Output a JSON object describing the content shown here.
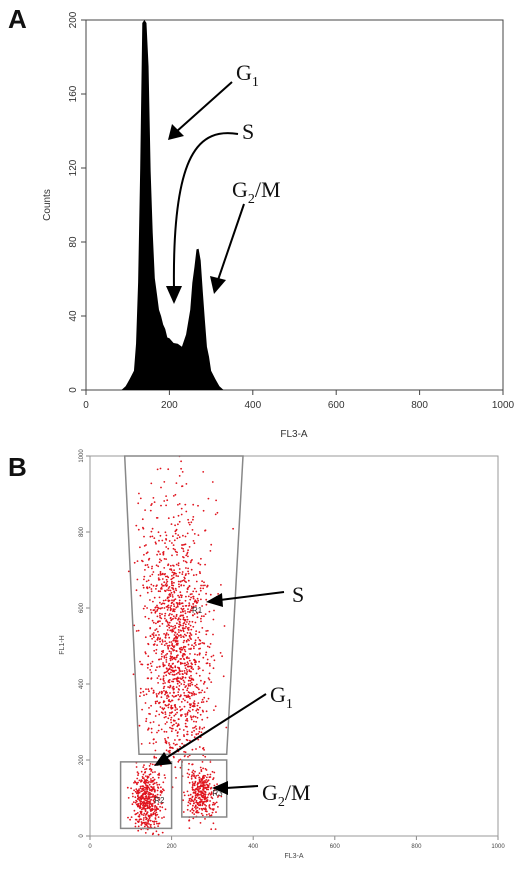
{
  "panels": {
    "a_letter": "A",
    "b_letter": "B"
  },
  "chart_data": [
    {
      "type": "area",
      "panel": "A",
      "xlabel": "FL3-A",
      "ylabel": "Counts",
      "xlim": [
        0,
        1000
      ],
      "ylim": [
        0,
        200
      ],
      "x_ticks": [
        0,
        200,
        400,
        600,
        800,
        1000
      ],
      "y_ticks": [
        0,
        40,
        80,
        120,
        160,
        200
      ],
      "fill_color": "#000000",
      "x": [
        85,
        95,
        105,
        115,
        120,
        125,
        130,
        135,
        140,
        145,
        150,
        155,
        160,
        165,
        170,
        175,
        180,
        185,
        190,
        195,
        200,
        210,
        220,
        230,
        240,
        250,
        255,
        260,
        265,
        270,
        275,
        280,
        285,
        290,
        295,
        300,
        310,
        320,
        330
      ],
      "values": [
        0,
        2,
        6,
        12,
        25,
        60,
        120,
        200,
        200,
        200,
        175,
        120,
        85,
        62,
        52,
        45,
        40,
        37,
        33,
        30,
        28,
        27,
        25,
        25,
        30,
        45,
        58,
        68,
        76,
        78,
        70,
        55,
        38,
        25,
        18,
        12,
        6,
        2,
        0
      ],
      "annotations": [
        {
          "id": "g1",
          "main": "G",
          "sub": "1"
        },
        {
          "id": "s",
          "main": "S",
          "sub": ""
        },
        {
          "id": "g2m",
          "main": "G",
          "sub": "2",
          "tail": "/M"
        }
      ]
    },
    {
      "type": "scatter",
      "panel": "B",
      "xlabel": "FL3-A",
      "ylabel": "FL1-H",
      "xlim": [
        0,
        1000
      ],
      "ylim": [
        0,
        1000
      ],
      "x_ticks": [
        0,
        200,
        400,
        600,
        800,
        1000
      ],
      "y_ticks": [
        0,
        200,
        400,
        600,
        800,
        1000
      ],
      "point_color": "#e0141e",
      "gate_color": "#888888",
      "gates": [
        {
          "name": "S",
          "label": "R1",
          "polygon": [
            [
              85,
              1000
            ],
            [
              375,
              1000
            ],
            [
              335,
              215
            ],
            [
              120,
              215
            ]
          ]
        },
        {
          "name": "G1",
          "label": "R2",
          "polygon": [
            [
              75,
              195
            ],
            [
              200,
              195
            ],
            [
              200,
              20
            ],
            [
              75,
              20
            ]
          ]
        },
        {
          "name": "G2M",
          "label": "R3",
          "polygon": [
            [
              225,
              200
            ],
            [
              335,
              200
            ],
            [
              335,
              50
            ],
            [
              225,
              50
            ]
          ]
        }
      ],
      "annotations": [
        {
          "id": "s",
          "main": "S",
          "sub": ""
        },
        {
          "id": "g1",
          "main": "G",
          "sub": "1"
        },
        {
          "id": "g2m",
          "main": "G",
          "sub": "2",
          "tail": "/M"
        }
      ]
    }
  ]
}
